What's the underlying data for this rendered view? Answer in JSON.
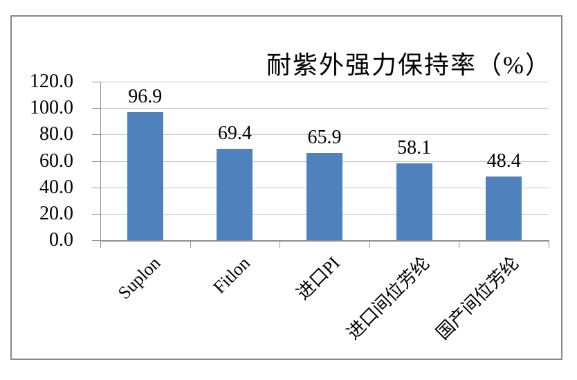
{
  "chart_data": {
    "type": "bar",
    "title": "耐紫外强力保持率（%）",
    "categories": [
      "Suplon",
      "Fitlon",
      "进口PI",
      "进口间位芳纶",
      "国产间位芳纶"
    ],
    "values": [
      96.9,
      69.4,
      65.9,
      58.1,
      48.4
    ],
    "data_labels": [
      "96.9",
      "69.4",
      "65.9",
      "58.1",
      "48.4"
    ],
    "xlabel": "",
    "ylabel": "",
    "ylim": [
      0,
      120
    ],
    "yticks": [
      0,
      20,
      40,
      60,
      80,
      100,
      120
    ],
    "ytick_labels": [
      "0.0",
      "20.0",
      "40.0",
      "60.0",
      "80.0",
      "100.0",
      "120.0"
    ],
    "grid": "horizontal",
    "legend": "none",
    "colors": {
      "bar_fill": "#4f81bd",
      "gridline": "#c4c4c4",
      "axis": "#8f8f8f",
      "frame_border": "#8a8a8a",
      "background": "#ffffff",
      "text": "#000000"
    }
  }
}
